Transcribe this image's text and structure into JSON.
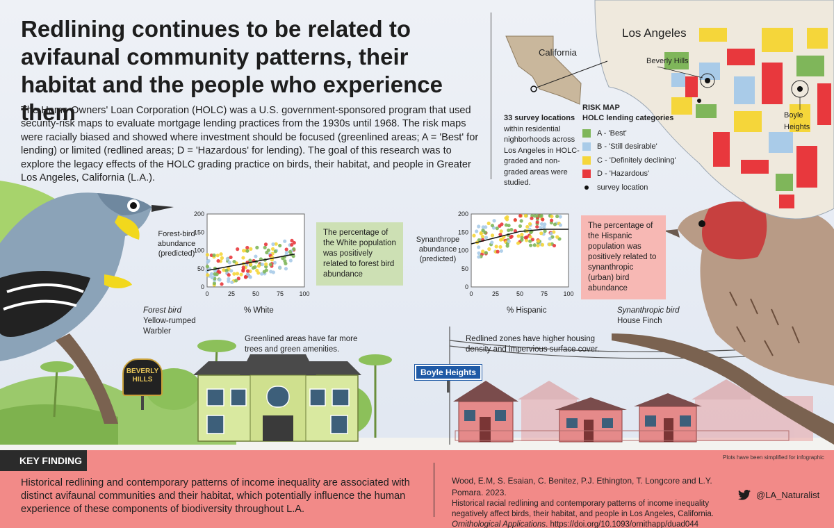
{
  "title": "Redlining continues to be related to avifaunal community patterns, their habitat and the people who experience them",
  "intro": "The Home Owners' Loan Corporation (HOLC) was a U.S. government-sponsored program that used security-risk maps to evaluate mortgage lending practices from the 1930s until 1968. The risk maps were racially biased and showed where investment should be focused (greenlined areas; A = 'Best' for lending) or limited (redlined areas; D = 'Hazardous' for lending). The goal of this research was to explore the legacy effects of the HOLC grading practice on birds, their habitat, and people in Greater Los Angeles, California (L.A.).",
  "map": {
    "california": "California",
    "los_angeles": "Los Angeles",
    "beverly_hills": "Beverly Hills",
    "boyle_heights": "Boyle Heights",
    "survey_bold": "33 survey locations",
    "survey_rest": "within residential nighborhoods across Los Angeles in HOLC-graded and non-graded areas were studied.",
    "legend_title1": "RISK MAP",
    "legend_title2": "HOLC lending categories",
    "legend": [
      {
        "label": "A - 'Best'",
        "color": "#7fb65a"
      },
      {
        "label": "B - 'Still desirable'",
        "color": "#a9cbe8"
      },
      {
        "label": "C - 'Definitely declining'",
        "color": "#f5d63a"
      },
      {
        "label": "D - 'Hazardous'",
        "color": "#e8383d"
      },
      {
        "label": "survey location",
        "color": "#111111"
      }
    ]
  },
  "plot1": {
    "ylabel_1": "Forest-bird",
    "ylabel_2": "abundance",
    "ylabel_3": "(predicted)",
    "xlabel": "% White",
    "yticks": [
      "0",
      "50",
      "100",
      "150",
      "200"
    ],
    "xticks": [
      "0",
      "25",
      "50",
      "75",
      "100"
    ],
    "callout": "The percentage of the White population was positively related to forest bird abundance",
    "callout_color": "#cde0b4"
  },
  "plot2": {
    "ylabel_1": "Synanthrope",
    "ylabel_2": "abundance",
    "ylabel_3": "(predicted)",
    "xlabel": "% Hispanic",
    "yticks": [
      "0",
      "50",
      "100",
      "150",
      "200"
    ],
    "xticks": [
      "0",
      "25",
      "50",
      "75",
      "100"
    ],
    "callout": "The percentage of the Hispanic population was positively related to synanthropic (urban) bird abundance",
    "callout_color": "#f7b8b4"
  },
  "chart_data": [
    {
      "type": "scatter",
      "xlabel": "% White",
      "ylabel": "Forest-bird abundance (predicted)",
      "xlim": [
        0,
        100
      ],
      "ylim": [
        0,
        200
      ],
      "trend_line": {
        "x": [
          0,
          90
        ],
        "y": [
          45,
          90
        ]
      },
      "series_colors": {
        "A": "#7fb65a",
        "B": "#a9cbe8",
        "C": "#f5d63a",
        "D": "#e8383d"
      }
    },
    {
      "type": "scatter",
      "xlabel": "% Hispanic",
      "ylabel": "Synanthrope abundance (predicted)",
      "xlim": [
        0,
        100
      ],
      "ylim": [
        0,
        200
      ],
      "trend_line": {
        "x": [
          0,
          25,
          50,
          75,
          100
        ],
        "y": [
          118,
          135,
          152,
          158,
          158
        ]
      },
      "series_colors": {
        "A": "#7fb65a",
        "B": "#a9cbe8",
        "C": "#f5d63a",
        "D": "#e8383d"
      }
    }
  ],
  "birds": {
    "forest_type": "Forest bird",
    "forest_name_1": "Yellow-rumped",
    "forest_name_2": "Warbler",
    "urban_type": "Synanthropic bird",
    "urban_name": "House Finch"
  },
  "captions": {
    "green": "Greenlined areas have far more trees and green amenities.",
    "red": "Redlined zones have higher housing density and impervious surface cover."
  },
  "signs": {
    "beverly_1": "BEVERLY",
    "beverly_2": "HILLS",
    "boyle": "Boyle Heights"
  },
  "footer": {
    "key_label": "KEY FINDING",
    "key_text": "Historical redlining and contemporary patterns of income inequality are associated with distinct avifaunal communities and their habitat, which potentially influence the human experience of these components of biodiversity throughout L.A.",
    "authors": "Wood, E.M, S. Esaian, C. Benitez, P.J. Ethington, T. Longcore and L.Y. Pomara. 2023.",
    "paper_title": "Historical racial redlining and contemporary patterns of income inequality negatively affect birds, their habitat, and people in Los Angeles, California.",
    "journal": "Ornithological Applications",
    "doi": ". https://doi.org/10.1093/ornithapp/duad044",
    "twitter": "@LA_Naturalist",
    "note": "Plots have been simplified for infographic"
  }
}
